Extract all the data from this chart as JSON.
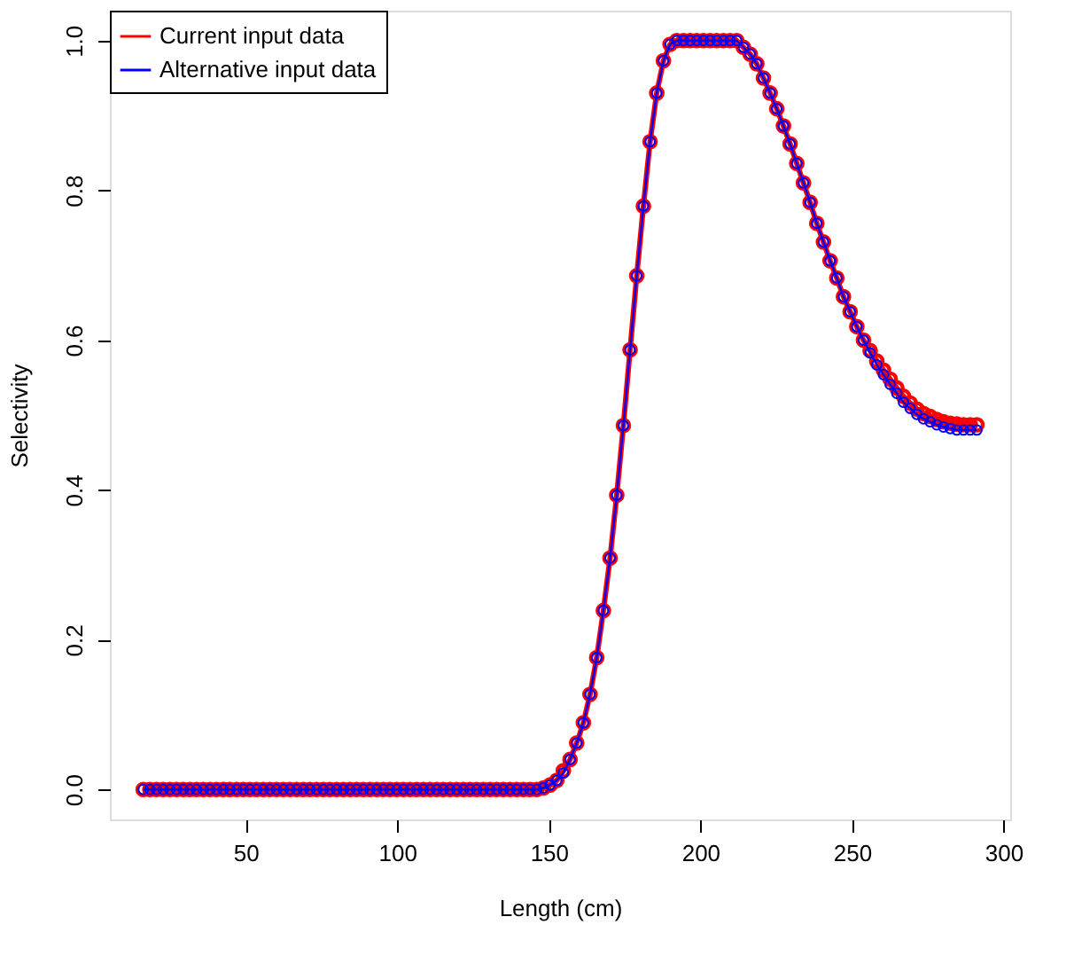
{
  "chart_data": {
    "type": "line",
    "xlabel": "Length (cm)",
    "ylabel": "Selectivity",
    "xlim": [
      5.2,
      302.2
    ],
    "ylim": [
      -0.04,
      1.04
    ],
    "xticks": [
      50,
      100,
      150,
      200,
      250,
      300
    ],
    "yticks": [
      {
        "value": 0,
        "label": "0.0"
      },
      {
        "value": 0.2,
        "label": "0.2"
      },
      {
        "value": 0.4,
        "label": "0.4"
      },
      {
        "value": 0.6,
        "label": "0.6"
      },
      {
        "value": 0.8,
        "label": "0.8"
      },
      {
        "value": 1,
        "label": "1.0"
      }
    ],
    "x": [
      16.2,
      18.4,
      20.6,
      22.8,
      25,
      27.2,
      29.4,
      31.6,
      33.8,
      36,
      38.2,
      40.4,
      42.6,
      44.8,
      47,
      49.2,
      51.4,
      53.6,
      55.8,
      58,
      60.2,
      62.4,
      64.6,
      66.8,
      69,
      71.2,
      73.4,
      75.6,
      77.8,
      80,
      82.2,
      84.4,
      86.6,
      88.8,
      91,
      93.2,
      95.4,
      97.6,
      99.8,
      102,
      104.2,
      106.4,
      108.6,
      110.8,
      113,
      115.2,
      117.4,
      119.6,
      121.8,
      124,
      126.2,
      128.4,
      130.6,
      132.8,
      135,
      137.2,
      139.4,
      141.6,
      143.8,
      146,
      148.2,
      150.4,
      152.6,
      154.8,
      157,
      159.2,
      161.4,
      163.6,
      165.8,
      168,
      170.2,
      172.4,
      174.6,
      176.8,
      179,
      181.2,
      183.4,
      185.6,
      187.8,
      190,
      192.2,
      194.4,
      196.6,
      198.8,
      201,
      203.2,
      205.4,
      207.6,
      209.8,
      212,
      214.2,
      216.4,
      218.6,
      220.8,
      223,
      225.2,
      227.4,
      229.6,
      231.8,
      234,
      236.2,
      238.4,
      240.6,
      242.8,
      245,
      247.2,
      249.4,
      251.6,
      253.8,
      256,
      258.2,
      260.4,
      262.6,
      264.8,
      267,
      269.2,
      271.4,
      273.6,
      275.8,
      278,
      280.2,
      282.4,
      284.6,
      286.8,
      289,
      291.2
    ],
    "series": [
      {
        "name": "Current input data",
        "color": "#ff0000",
        "values": [
          0,
          0,
          0,
          0,
          0,
          0,
          0,
          0,
          0,
          0,
          0,
          0,
          0,
          0,
          0,
          0,
          0,
          0,
          0,
          0,
          0,
          0,
          0,
          0,
          0,
          0,
          0,
          0,
          0,
          0,
          0,
          0,
          0,
          0,
          0,
          0,
          0,
          0,
          0,
          0,
          0,
          0,
          0,
          0,
          0,
          0,
          0,
          0,
          0,
          0,
          0,
          0,
          0,
          0,
          0,
          0,
          0,
          0,
          0,
          0,
          0.002,
          0.006,
          0.012,
          0.025,
          0.04,
          0.062,
          0.089,
          0.127,
          0.176,
          0.239,
          0.309,
          0.393,
          0.486,
          0.587,
          0.686,
          0.779,
          0.865,
          0.93,
          0.973,
          0.995,
          1,
          1,
          1,
          1,
          1,
          1,
          1,
          1,
          1,
          1,
          0.991,
          0.982,
          0.969,
          0.95,
          0.93,
          0.909,
          0.886,
          0.862,
          0.836,
          0.81,
          0.784,
          0.756,
          0.731,
          0.706,
          0.683,
          0.658,
          0.638,
          0.618,
          0.6,
          0.586,
          0.572,
          0.56,
          0.548,
          0.536,
          0.525,
          0.516,
          0.508,
          0.502,
          0.498,
          0.494,
          0.491,
          0.489,
          0.488,
          0.487,
          0.487,
          0.487
        ]
      },
      {
        "name": "Alternative input data",
        "color": "#0000ff",
        "values": [
          0,
          0,
          0,
          0,
          0,
          0,
          0,
          0,
          0,
          0,
          0,
          0,
          0,
          0,
          0,
          0,
          0,
          0,
          0,
          0,
          0,
          0,
          0,
          0,
          0,
          0,
          0,
          0,
          0,
          0,
          0,
          0,
          0,
          0,
          0,
          0,
          0,
          0,
          0,
          0,
          0,
          0,
          0,
          0,
          0,
          0,
          0,
          0,
          0,
          0,
          0,
          0,
          0,
          0,
          0,
          0,
          0,
          0,
          0,
          0,
          0.002,
          0.006,
          0.012,
          0.022,
          0.04,
          0.062,
          0.089,
          0.127,
          0.176,
          0.239,
          0.309,
          0.393,
          0.486,
          0.587,
          0.686,
          0.779,
          0.865,
          0.93,
          0.973,
          0.995,
          1,
          1,
          1,
          1,
          1,
          1,
          1,
          1,
          1,
          1,
          0.991,
          0.982,
          0.969,
          0.95,
          0.93,
          0.909,
          0.886,
          0.862,
          0.836,
          0.81,
          0.784,
          0.756,
          0.731,
          0.706,
          0.683,
          0.658,
          0.638,
          0.618,
          0.6,
          0.583,
          0.567,
          0.554,
          0.541,
          0.529,
          0.517,
          0.509,
          0.501,
          0.495,
          0.491,
          0.487,
          0.484,
          0.482,
          0.48,
          0.48,
          0.48,
          0.48
        ]
      }
    ],
    "marker": "circle",
    "line_style": "solid",
    "grid": false,
    "legend": "top left"
  }
}
